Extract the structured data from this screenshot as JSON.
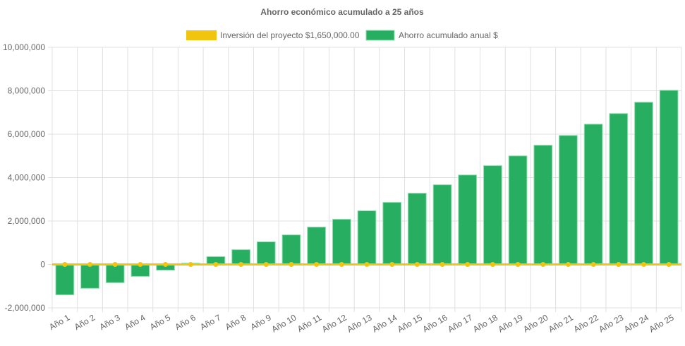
{
  "chart_data": {
    "type": "bar",
    "title": "Ahorro económico acumulado a 25 años",
    "xlabel": "",
    "ylabel": "",
    "ylim": [
      -2000000,
      10000000
    ],
    "yticks": [
      "10,000,000",
      "8,000,000",
      "6,000,000",
      "4,000,000",
      "2,000,000",
      "0",
      "-2,000,000"
    ],
    "ytick_values": [
      10000000,
      8000000,
      6000000,
      4000000,
      2000000,
      0,
      -2000000
    ],
    "grid": true,
    "legend_position": "top",
    "categories": [
      "Año 1",
      "Año 2",
      "Año 3",
      "Año 4",
      "Año 5",
      "Año 6",
      "Año 7",
      "Año 8",
      "Año 9",
      "Año 10",
      "Año 11",
      "Año 12",
      "Año 13",
      "Año 14",
      "Año 15",
      "Año 16",
      "Año 17",
      "Año 18",
      "Año 19",
      "Año 20",
      "Año 21",
      "Año 22",
      "Año 23",
      "Año 24",
      "Año 25"
    ],
    "series": [
      {
        "name": "Inversión del proyecto $1,650,000.00",
        "type": "line",
        "color": "#f1c40f",
        "values": [
          0,
          0,
          0,
          0,
          0,
          0,
          0,
          0,
          0,
          0,
          0,
          0,
          0,
          0,
          0,
          0,
          0,
          0,
          0,
          0,
          0,
          0,
          0,
          0,
          0
        ]
      },
      {
        "name": "Ahorro acumulado anual $",
        "type": "bar",
        "color": "#27ae60",
        "values": [
          -1400000,
          -1100000,
          -840000,
          -550000,
          -260000,
          60000,
          360000,
          680000,
          1040000,
          1360000,
          1720000,
          2080000,
          2470000,
          2860000,
          3280000,
          3670000,
          4120000,
          4550000,
          5000000,
          5490000,
          5940000,
          6460000,
          6950000,
          7470000,
          8020000
        ]
      }
    ]
  }
}
